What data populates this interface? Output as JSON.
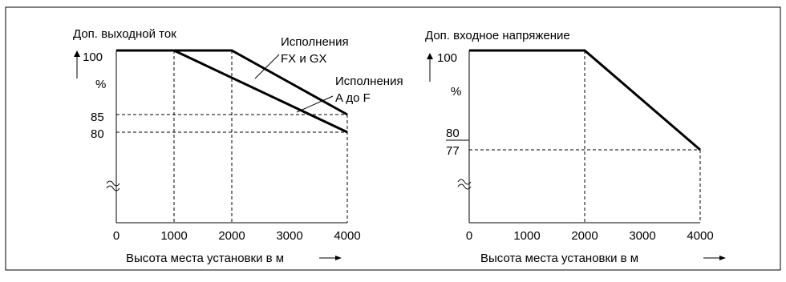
{
  "chart_data": [
    {
      "type": "line",
      "ylabel": "Доп. выходной ток",
      "yunit": "%",
      "xlabel": "Высота места установки в м",
      "xticks": [
        0,
        1000,
        2000,
        3000,
        4000
      ],
      "yticks": [
        100,
        85,
        80
      ],
      "xlim": [
        0,
        4000
      ],
      "y_break": true,
      "series": [
        {
          "name": "Исполнения FX и GX",
          "name_lines": [
            "Исполнения",
            "FX и GX"
          ],
          "x": [
            0,
            2000,
            4000
          ],
          "y": [
            100,
            100,
            85
          ]
        },
        {
          "name": "Исполнения A до F",
          "name_lines": [
            "Исполнения",
            "A до F"
          ],
          "x": [
            0,
            1000,
            4000
          ],
          "y": [
            100,
            100,
            80
          ]
        }
      ]
    },
    {
      "type": "line",
      "ylabel": "Доп. входное напряжение",
      "yunit": "%",
      "xlabel": "Высота места установки в м",
      "xticks": [
        0,
        1000,
        2000,
        3000,
        4000
      ],
      "yticks": [
        100,
        80,
        77
      ],
      "xlim": [
        0,
        4000
      ],
      "y_break": true,
      "series": [
        {
          "x": [
            0,
            2000,
            4000
          ],
          "y": [
            100,
            100,
            77
          ]
        }
      ]
    }
  ]
}
